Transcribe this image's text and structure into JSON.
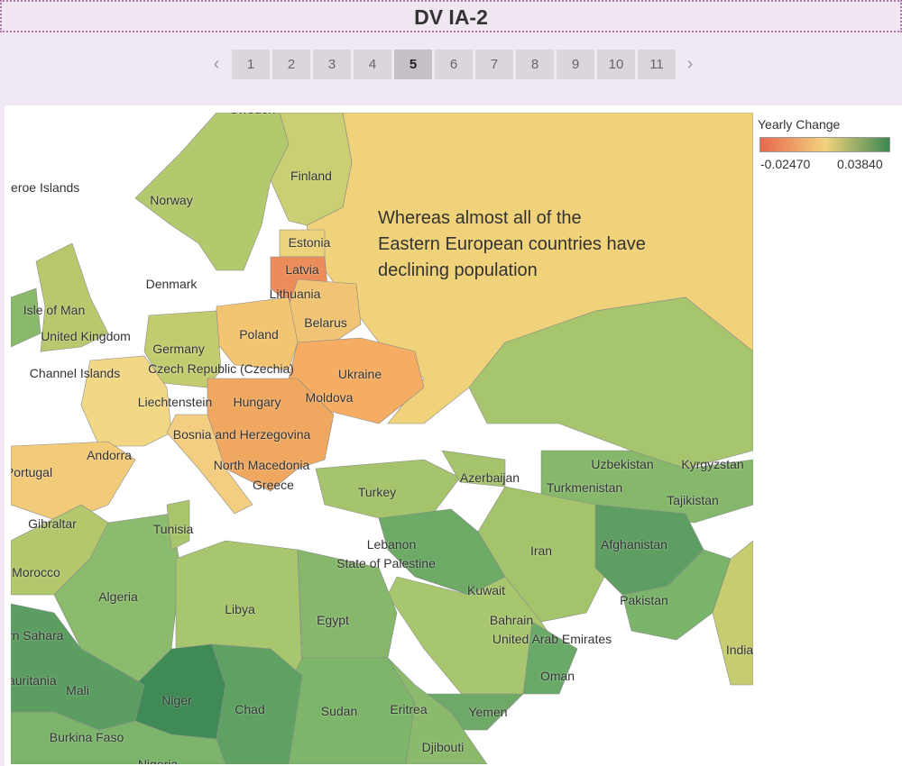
{
  "header": {
    "title": "DV IA-2"
  },
  "navigation": {
    "pages": [
      {
        "label": "1"
      },
      {
        "label": "2"
      },
      {
        "label": "3"
      },
      {
        "label": "4"
      },
      {
        "label": "5",
        "active": true
      },
      {
        "label": "6"
      },
      {
        "label": "7"
      },
      {
        "label": "8"
      },
      {
        "label": "9"
      },
      {
        "label": "10"
      },
      {
        "label": "11"
      }
    ]
  },
  "map": {
    "annotation": "Whereas almost all of the Eastern European countries have declining population",
    "countries": [
      "Sweden",
      "Finland",
      "Faeroe Islands",
      "Norway",
      "Estonia",
      "Latvia",
      "Denmark",
      "Lithuania",
      "Isle of Man",
      "Belarus",
      "Poland",
      "United Kingdom",
      "Germany",
      "Czech Republic (Czechia)",
      "Ukraine",
      "Channel Islands",
      "Liechtenstein",
      "Hungary",
      "Moldova",
      "Bosnia and Herzegovina",
      "Andorra",
      "Portugal",
      "North Macedonia",
      "Greece",
      "Azerbaijan",
      "Turkey",
      "Gibraltar",
      "Tunisia",
      "Uzbekistan",
      "Kyrgyzstan",
      "Turkmenistan",
      "Tajikistan",
      "Lebanon",
      "Iran",
      "Afghanistan",
      "Morocco",
      "State of Palestine",
      "Algeria",
      "Kuwait",
      "Libya",
      "Egypt",
      "Pakistan",
      "Bahrain",
      "United Arab Emirates",
      "India",
      "Western Sahara",
      "Mauritania",
      "Oman",
      "Mali",
      "Niger",
      "Chad",
      "Sudan",
      "Eritrea",
      "Yemen",
      "Burkina Faso",
      "Djibouti",
      "Nigeria"
    ]
  },
  "legend": {
    "title": "Yearly Change",
    "min": {
      "value": -0.0247,
      "label": "-0.02470"
    },
    "max": {
      "value": 0.0384,
      "label": "0.03840"
    },
    "colors": [
      "#e8664e",
      "#f2d27c",
      "#3b8752"
    ]
  }
}
